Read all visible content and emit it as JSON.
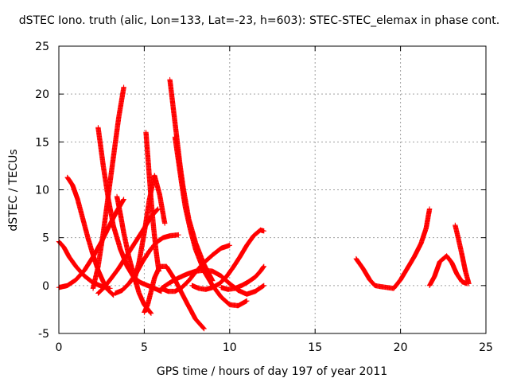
{
  "chart_data": {
    "type": "scatter",
    "title": "dSTEC Iono. truth (alic, Lon=133, Lat=-23, h=603): STEC-STEC_elemax in phase cont.",
    "xlabel": "GPS time / hours of day 197 of year 2011",
    "ylabel": "dSTEC  / TECUs",
    "xlim": [
      0,
      25
    ],
    "ylim": [
      -5,
      25
    ],
    "xticks": [
      0,
      5,
      10,
      15,
      20,
      25
    ],
    "yticks": [
      -5,
      0,
      5,
      10,
      15,
      20,
      25
    ],
    "xtick_labels": [
      "0",
      "5",
      "10",
      "15",
      "20",
      "25"
    ],
    "ytick_labels": [
      "-5",
      "0",
      "5",
      "10",
      "15",
      "20",
      "25"
    ],
    "grid": true,
    "marker": "+",
    "color": "#ff0000",
    "series": [
      {
        "x": [
          0.0,
          0.3,
          0.6,
          1.0,
          1.5,
          2.0,
          2.4,
          2.7,
          3.0
        ],
        "y": [
          4.6,
          4.0,
          3.0,
          2.0,
          1.0,
          0.3,
          0.0,
          -0.2,
          -0.3
        ]
      },
      {
        "x": [
          0.0,
          0.5,
          1.0,
          1.5,
          2.0,
          2.5,
          3.0,
          3.4,
          3.8
        ],
        "y": [
          -0.2,
          0.0,
          0.6,
          1.6,
          3.0,
          4.6,
          6.4,
          7.8,
          9.0
        ]
      },
      {
        "x": [
          0.5,
          0.8,
          1.1,
          1.4,
          1.7,
          2.0,
          2.3,
          2.6,
          2.9,
          3.2
        ],
        "y": [
          11.3,
          10.5,
          9.0,
          7.0,
          5.0,
          3.2,
          1.6,
          0.4,
          -0.5,
          -1.0
        ]
      },
      {
        "x": [
          2.3,
          2.6,
          3.0,
          3.5,
          4.0,
          4.5,
          5.0,
          5.4,
          5.8
        ],
        "y": [
          -0.8,
          -0.3,
          0.6,
          1.8,
          3.2,
          4.6,
          6.0,
          7.2,
          8.0
        ]
      },
      {
        "x": [
          2.3,
          2.6,
          2.9,
          3.2,
          3.6,
          4.0,
          4.4,
          4.8,
          5.2,
          5.6,
          6.0
        ],
        "y": [
          16.5,
          12.5,
          9.0,
          6.2,
          3.8,
          2.0,
          0.8,
          0.3,
          0.0,
          -0.3,
          -0.6
        ]
      },
      {
        "x": [
          2.0,
          2.3,
          2.6,
          2.9,
          3.2,
          3.5,
          3.8
        ],
        "y": [
          -0.3,
          2.0,
          5.5,
          9.5,
          13.5,
          17.5,
          20.7
        ]
      },
      {
        "x": [
          3.3,
          3.7,
          4.1,
          4.5,
          4.9,
          5.3,
          5.7,
          6.1,
          6.5,
          7.0
        ],
        "y": [
          -0.8,
          -0.5,
          0.2,
          1.2,
          2.5,
          3.6,
          4.5,
          5.0,
          5.2,
          5.3
        ]
      },
      {
        "x": [
          3.4,
          3.6,
          3.8,
          4.1,
          4.4,
          4.7,
          5.0,
          5.4
        ],
        "y": [
          9.3,
          7.5,
          5.5,
          3.0,
          1.0,
          -0.8,
          -2.0,
          -2.9
        ]
      },
      {
        "x": [
          5.0,
          5.2,
          5.4,
          5.6,
          5.9,
          6.3,
          6.8,
          7.4,
          8.0,
          8.5
        ],
        "y": [
          -2.8,
          -2.0,
          -0.6,
          0.8,
          2.0,
          2.0,
          0.6,
          -1.5,
          -3.5,
          -4.5
        ]
      },
      {
        "x": [
          5.1,
          5.25,
          5.4,
          5.55,
          5.7,
          5.85
        ],
        "y": [
          16.0,
          12.5,
          9.0,
          6.0,
          3.5,
          1.5
        ]
      },
      {
        "x": [
          4.4,
          4.7,
          5.0,
          5.3,
          5.6,
          5.9,
          6.2
        ],
        "y": [
          0.4,
          2.5,
          5.5,
          9.0,
          11.5,
          9.5,
          6.5
        ]
      },
      {
        "x": [
          6.0,
          6.4,
          6.8,
          7.2,
          7.6,
          8.0,
          8.5,
          9.0,
          9.5,
          10.0
        ],
        "y": [
          -0.3,
          -0.6,
          -0.6,
          -0.2,
          0.5,
          1.4,
          2.4,
          3.2,
          3.9,
          4.2
        ]
      },
      {
        "x": [
          6.5,
          6.7,
          6.9,
          7.1,
          7.3,
          7.6,
          8.0,
          8.5,
          9.0
        ],
        "y": [
          21.5,
          18.5,
          15.5,
          12.5,
          10.0,
          7.0,
          4.5,
          2.2,
          0.5
        ]
      },
      {
        "x": [
          6.8,
          7.0,
          7.2,
          7.4,
          7.7,
          8.0,
          8.5,
          9.0,
          9.5,
          10.0,
          10.5,
          11.0
        ],
        "y": [
          15.5,
          13.0,
          10.5,
          8.2,
          5.8,
          3.8,
          1.5,
          0.0,
          -1.2,
          -2.0,
          -2.1,
          -1.6
        ]
      },
      {
        "x": [
          6.0,
          6.5,
          7.0,
          7.5,
          8.0,
          8.5,
          9.0,
          9.5,
          10.0,
          10.5,
          11.0,
          11.5,
          12.0
        ],
        "y": [
          -0.3,
          0.3,
          0.8,
          1.2,
          1.5,
          1.6,
          1.5,
          1.0,
          0.2,
          -0.5,
          -0.9,
          -0.6,
          0.0
        ]
      },
      {
        "x": [
          7.8,
          8.2,
          8.6,
          9.0,
          9.4,
          9.8,
          10.2,
          10.6,
          11.0,
          11.4,
          11.8,
          12.0
        ],
        "y": [
          0.0,
          -0.3,
          -0.4,
          -0.2,
          0.2,
          0.9,
          1.9,
          3.0,
          4.2,
          5.2,
          5.8,
          5.7
        ]
      },
      {
        "x": [
          9.5,
          9.9,
          10.3,
          10.7,
          11.1,
          11.5,
          11.8,
          12.0
        ],
        "y": [
          -0.2,
          -0.4,
          -0.3,
          0.0,
          0.4,
          0.9,
          1.5,
          2.0
        ]
      },
      {
        "x": [
          17.4,
          17.8,
          18.2,
          18.5,
          18.8,
          19.2,
          19.6,
          20.0,
          20.4,
          20.8,
          21.2,
          21.5,
          21.7
        ],
        "y": [
          2.8,
          1.8,
          0.6,
          0.0,
          -0.1,
          -0.2,
          -0.3,
          0.6,
          1.8,
          3.0,
          4.4,
          6.0,
          8.0
        ]
      },
      {
        "x": [
          21.7,
          22.0,
          22.3,
          22.7,
          23.0,
          23.3,
          23.6,
          23.9
        ],
        "y": [
          0.0,
          1.0,
          2.5,
          3.1,
          2.4,
          1.2,
          0.4,
          0.2
        ]
      },
      {
        "x": [
          23.2,
          23.4,
          23.6,
          23.8,
          24.0
        ],
        "y": [
          6.3,
          4.8,
          3.2,
          1.5,
          0.2
        ]
      }
    ]
  }
}
